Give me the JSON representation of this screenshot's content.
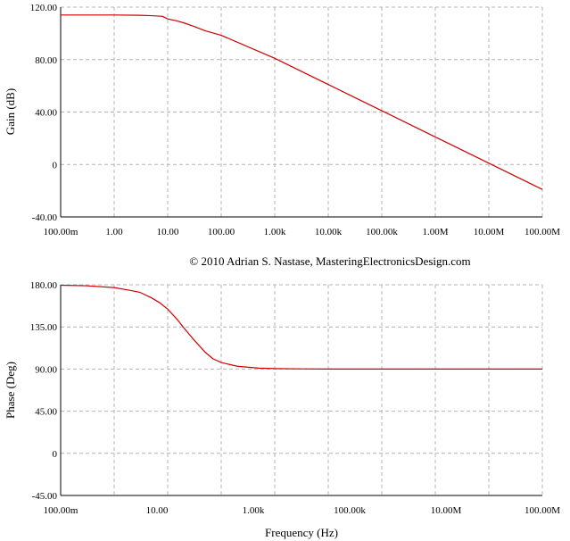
{
  "copyright": "© 2010 Adrian S. Nastase, MasteringElectronicsDesign.com",
  "colors": {
    "curve": "#cc0000",
    "grid": "#b4b4b4",
    "frame": "#000000"
  },
  "chart_data": [
    {
      "type": "line",
      "ylabel": "Gain (dB)",
      "xlabel": "",
      "xscale": "log",
      "xlim": [
        0.1,
        100000000
      ],
      "ylim": [
        -40,
        120
      ],
      "grid": true,
      "x_tick_labels": [
        "100.00m",
        "1.00",
        "10.00",
        "100.00",
        "1.00k",
        "10.00k",
        "100.00k",
        "1.00M",
        "10.00M",
        "100.00M"
      ],
      "y_tick_labels": [
        "120.00",
        "80.00",
        "40.00",
        "0",
        "-40.00"
      ],
      "series": [
        {
          "x": [
            0.1,
            1,
            3,
            5,
            8,
            10,
            15,
            20,
            30,
            50,
            100,
            1000,
            10000,
            100000,
            1000000,
            10000000,
            100000000
          ],
          "y": [
            114,
            114,
            113.8,
            113.5,
            113,
            111,
            109.5,
            108,
            105.5,
            102,
            98.5,
            81,
            61,
            41,
            21,
            1,
            -19
          ]
        }
      ]
    },
    {
      "type": "line",
      "ylabel": "Phase (Deg)",
      "xlabel": "Frequency (Hz)",
      "xscale": "log",
      "xlim": [
        0.1,
        100000000
      ],
      "ylim": [
        -45,
        180
      ],
      "grid": true,
      "x_tick_labels": [
        "100.00m",
        "10.00",
        "1.00k",
        "100.00k",
        "10.00M",
        "100.00M"
      ],
      "y_tick_labels": [
        "180.00",
        "135.00",
        "90.00",
        "45.00",
        "0",
        "-45.00"
      ],
      "series": [
        {
          "x": [
            0.1,
            0.3,
            1,
            2,
            3,
            5,
            7,
            10,
            15,
            20,
            30,
            50,
            70,
            100,
            200,
            500,
            1000,
            3000,
            10000,
            100000,
            1000000,
            10000000,
            100000000
          ],
          "y": [
            179.5,
            179,
            177,
            174,
            172,
            166,
            161,
            154,
            143,
            134,
            122,
            108,
            101,
            97,
            93,
            91,
            90.5,
            90.2,
            90,
            90,
            90,
            90,
            90
          ]
        }
      ]
    }
  ]
}
